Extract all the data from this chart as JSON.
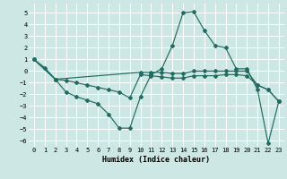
{
  "xlabel": "Humidex (Indice chaleur)",
  "xlim": [
    -0.5,
    23.5
  ],
  "ylim": [
    -6.5,
    5.8
  ],
  "yticks": [
    -6,
    -5,
    -4,
    -3,
    -2,
    -1,
    0,
    1,
    2,
    3,
    4,
    5
  ],
  "xticks": [
    0,
    1,
    2,
    3,
    4,
    5,
    6,
    7,
    8,
    9,
    10,
    11,
    12,
    13,
    14,
    15,
    16,
    17,
    18,
    19,
    20,
    21,
    22,
    23
  ],
  "bg_color": "#cde8e4",
  "line_color": "#216b61",
  "grid_color": "#ffffff",
  "line1": {
    "x": [
      0,
      1,
      2,
      3,
      4,
      5,
      6,
      7,
      8,
      9,
      10,
      11,
      12,
      13,
      14,
      15,
      16,
      17,
      18,
      19,
      20,
      21,
      22,
      23
    ],
    "y": [
      1.0,
      0.3,
      -0.7,
      -1.8,
      -2.2,
      -2.5,
      -2.8,
      -3.7,
      -4.9,
      -4.9,
      -2.2,
      -0.3,
      0.2,
      2.2,
      5.0,
      5.1,
      3.5,
      2.2,
      2.0,
      0.2,
      0.2,
      -1.6,
      -6.2,
      -2.6
    ]
  },
  "line2": {
    "x": [
      0,
      2,
      3,
      4,
      5,
      6,
      7,
      8,
      9,
      10,
      11,
      12,
      13,
      14,
      15,
      16,
      17,
      18,
      19,
      20,
      21,
      22,
      23
    ],
    "y": [
      1.0,
      -0.7,
      -0.8,
      -1.0,
      -1.2,
      -1.4,
      -1.6,
      -1.8,
      -2.3,
      -0.3,
      -0.4,
      -0.5,
      -0.6,
      -0.6,
      -0.4,
      -0.4,
      -0.4,
      -0.3,
      -0.3,
      -0.4,
      -1.2,
      -1.6,
      -2.6
    ]
  },
  "line3": {
    "x": [
      0,
      2,
      10,
      11,
      12,
      13,
      14,
      15,
      16,
      17,
      18,
      19,
      20,
      21,
      22,
      23
    ],
    "y": [
      1.0,
      -0.7,
      -0.1,
      -0.1,
      -0.1,
      -0.2,
      -0.2,
      0.0,
      0.0,
      0.0,
      0.0,
      0.0,
      0.0,
      -1.2,
      -1.6,
      -2.6
    ]
  }
}
